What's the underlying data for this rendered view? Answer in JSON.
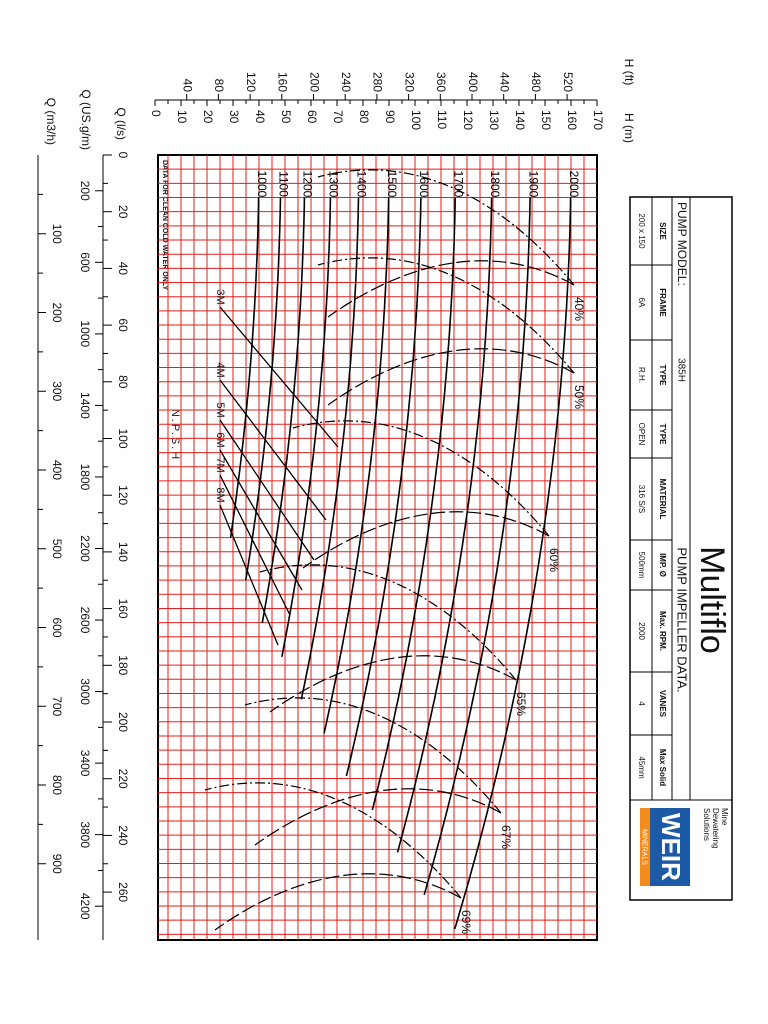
{
  "header": {
    "brand": "Multiflo",
    "model_label": "PUMP MODEL:",
    "model": "385H",
    "impeller_title": "PUMP IMPELLER DATA."
  },
  "table": {
    "headers": [
      "SIZE",
      "FRAME",
      "TYPE",
      "TYPE",
      "MATERIAL",
      "IMP. Ø",
      "Max. RPM.",
      "VANES",
      "Max Solid"
    ],
    "values": [
      "200 x 150",
      "6A",
      "R.H.",
      "OPEN",
      "316 S/S",
      "500mm",
      "2000",
      "4",
      "45mm"
    ]
  },
  "logo": {
    "tagline": [
      "Mine",
      "Dewatering",
      "Solutions"
    ],
    "brand": "WEIR",
    "division": "MINERALS"
  },
  "axes": {
    "h_ft": {
      "label": "H (ft)",
      "ticks": [
        40,
        80,
        120,
        160,
        200,
        240,
        280,
        320,
        360,
        400,
        440,
        480,
        520
      ]
    },
    "h_m": {
      "label": "H (m)",
      "ticks": [
        0,
        10,
        20,
        30,
        40,
        50,
        60,
        70,
        80,
        90,
        100,
        110,
        120,
        130,
        140,
        150,
        160,
        170
      ]
    },
    "q_ls": {
      "label": "Q (l/s)",
      "ticks": [
        0,
        20,
        40,
        60,
        80,
        100,
        120,
        140,
        160,
        180,
        200,
        220,
        240,
        260
      ]
    },
    "q_usgpm": {
      "label": "Q (US.g/m)",
      "ticks": [
        200,
        600,
        1000,
        1400,
        1800,
        2200,
        2600,
        3000,
        3400,
        3800,
        4200
      ]
    },
    "q_m3h": {
      "label": "Q (m3/h)",
      "ticks": [
        100,
        200,
        300,
        400,
        500,
        600,
        700,
        800,
        900
      ]
    }
  },
  "chart": {
    "note": "DATA FOR CLEAN COLD WATER ONLY",
    "speeds": [
      1000,
      1100,
      1200,
      1300,
      1400,
      1500,
      1600,
      1700,
      1800,
      1900,
      2000
    ],
    "efficiencies": [
      "40%",
      "50%",
      "60%",
      "65%",
      "67%",
      "69%"
    ],
    "npsh_title": "N.P.S.H",
    "npsh": [
      "3M",
      "4M",
      "5M",
      "6M",
      "7M",
      "8M"
    ]
  }
}
